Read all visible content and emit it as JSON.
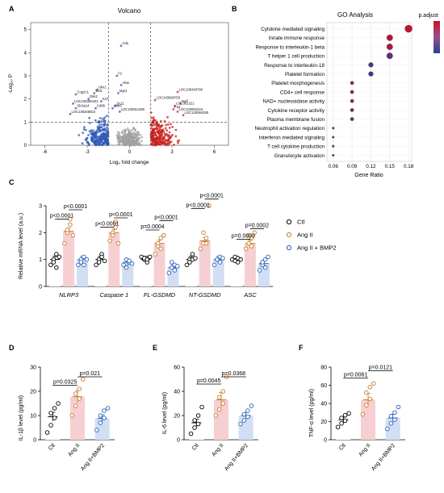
{
  "colors": {
    "ctl": "#000000",
    "angii": "#c87d2c",
    "bmp2": "#2d62b6",
    "ctl_bar": "#ffffff",
    "angii_bar": "#f6cfd2",
    "bmp2_bar": "#d2def4",
    "volcano_up": "#c8201c",
    "volcano_down": "#2f58b8",
    "volcano_ns": "#a0a0a0",
    "go_high": "#c8102e",
    "go_low": "#2b3f8f"
  },
  "panel_labels": {
    "a": "A",
    "b": "B",
    "c": "C",
    "d": "D",
    "e": "E",
    "f": "F"
  },
  "chart_data": [
    {
      "id": "volcano",
      "type": "scatter",
      "title": "Volcano",
      "xlabel": "Log₂ fold change",
      "ylabel": "-Log₁₀ P",
      "xlim": [
        -7,
        7
      ],
      "ylim": [
        0,
        5.3
      ],
      "xticks": [
        "-6",
        "-3",
        "0",
        "3",
        "6"
      ],
      "yticks": [
        "0",
        "1",
        "2",
        "3",
        "4",
        "5"
      ],
      "thresholds": {
        "x": [
          -1.5,
          1.5
        ],
        "y": 1
      },
      "labels_down": [
        {
          "text": "Ctla",
          "x": -0.6,
          "y": 4.3
        },
        {
          "text": "F2",
          "x": -0.9,
          "y": 3.0
        },
        {
          "text": "Atbe",
          "x": -0.6,
          "y": 2.6
        },
        {
          "text": "Ukn1",
          "x": -2.3,
          "y": 2.4
        },
        {
          "text": "Wd1",
          "x": -2.5,
          "y": 2.25
        },
        {
          "text": "Mgr1",
          "x": -0.8,
          "y": 2.25
        },
        {
          "text": "Cog2c1",
          "x": -3.8,
          "y": 2.2
        },
        {
          "text": "Dkk2",
          "x": -2.9,
          "y": 2.0
        },
        {
          "text": "K27",
          "x": -2.0,
          "y": 1.9
        },
        {
          "text": "LOC108350102",
          "x": -4.0,
          "y": 1.8
        },
        {
          "text": "Sc11",
          "x": -1.0,
          "y": 1.7
        },
        {
          "text": "Slc6a14",
          "x": -3.8,
          "y": 1.6
        },
        {
          "text": "Cd86",
          "x": -2.4,
          "y": 1.6
        },
        {
          "text": "Klrk8",
          "x": -1.2,
          "y": 1.6
        },
        {
          "text": "LOC100911366",
          "x": -0.7,
          "y": 1.45
        },
        {
          "text": "LOC108348923",
          "x": -4.2,
          "y": 1.35
        }
      ],
      "labels_up": [
        {
          "text": "LOC108349790",
          "x": 3.4,
          "y": 2.3
        },
        {
          "text": "LOC103690750",
          "x": 1.8,
          "y": 1.95
        },
        {
          "text": "Nuff",
          "x": 3.6,
          "y": 1.8
        },
        {
          "text": "LOC361221",
          "x": 3.2,
          "y": 1.7
        },
        {
          "text": "Fa4",
          "x": 3.1,
          "y": 1.55
        },
        {
          "text": "LOC103694243",
          "x": 3.4,
          "y": 1.45
        },
        {
          "text": "LOC120094285",
          "x": 3.8,
          "y": 1.3
        }
      ]
    },
    {
      "id": "go",
      "type": "scatter",
      "title": "GO Analysis",
      "xlabel": "Gene Ratio",
      "xlim": [
        0.05,
        0.185
      ],
      "xticks": [
        0.06,
        0.09,
        0.12,
        0.15,
        0.18
      ],
      "legend_title": "p.adjust",
      "categories": [
        "Cytokine mediated signaling",
        "Innate immune response",
        "Response to interleukin-1 beta",
        "T helper 1 cell production",
        "Response to interleukin-18",
        "Platelet formation",
        "Platelet morphogenesis",
        "CD4+ cell response",
        "NAD+ nucleosidase activity",
        "Cytokine receptor activity",
        "Plasma membrane fusion",
        "Neutrophil activation regulation",
        "Interferon mediated signaling",
        "T cell cytokine production",
        "Granulocyte activation"
      ],
      "gene_ratio": [
        0.18,
        0.15,
        0.15,
        0.15,
        0.12,
        0.12,
        0.09,
        0.09,
        0.09,
        0.09,
        0.09,
        0.06,
        0.06,
        0.06,
        0.06
      ],
      "padjust_rank": [
        0.9,
        0.85,
        0.82,
        0.25,
        0.2,
        0.2,
        0.6,
        0.55,
        0.5,
        0.35,
        0.25,
        0.4,
        0.35,
        0.3,
        0.3
      ]
    },
    {
      "id": "mrna",
      "type": "bar",
      "ylabel": "Relative mRNA level (a.u.)",
      "ylim": [
        0,
        3
      ],
      "yticks": [
        "0",
        "1",
        "2",
        "3"
      ],
      "categories": [
        "NLRP3",
        "Caspase 1",
        "FL-GSDMD",
        "NT-GSDMD",
        "ASC"
      ],
      "legend_position": "right",
      "series": [
        {
          "name": "Ctl",
          "values": [
            1.0,
            1.0,
            1.0,
            1.0,
            1.0
          ],
          "points": [
            [
              0.8,
              1.0,
              1.2,
              0.9,
              0.7,
              1.1
            ],
            [
              0.8,
              1.0,
              1.2,
              0.9,
              1.1,
              0.95
            ],
            [
              1.1,
              1.0,
              0.9,
              1.05,
              1.0,
              1.1
            ],
            [
              0.8,
              1.0,
              1.2,
              0.9,
              1.0,
              1.05
            ],
            [
              1.0,
              1.1,
              0.9,
              0.95,
              1.05,
              1.0
            ]
          ]
        },
        {
          "name": "Ang II",
          "values": [
            2.05,
            2.0,
            1.6,
            1.7,
            1.6
          ],
          "points": [
            [
              1.6,
              2.0,
              2.3,
              2.1,
              2.5,
              1.9
            ],
            [
              1.7,
              2.0,
              2.2,
              1.9,
              2.4,
              1.6
            ],
            [
              1.2,
              1.5,
              1.8,
              1.6,
              1.4,
              1.9
            ],
            [
              1.4,
              1.6,
              1.8,
              2.0,
              1.6,
              3.0
            ],
            [
              1.4,
              1.6,
              1.8,
              1.9,
              1.5,
              2.0
            ]
          ]
        },
        {
          "name": "Ang II + BMP2",
          "values": [
            1.0,
            0.9,
            0.7,
            1.0,
            0.85
          ],
          "points": [
            [
              0.8,
              1.0,
              1.1,
              0.9,
              0.8,
              1.0
            ],
            [
              0.8,
              1.0,
              0.9,
              0.7,
              0.95,
              0.85
            ],
            [
              0.5,
              0.7,
              0.8,
              0.9,
              0.6,
              0.75
            ],
            [
              0.8,
              1.0,
              1.1,
              1.0,
              0.9,
              1.05
            ],
            [
              0.6,
              0.8,
              1.0,
              0.9,
              0.7,
              1.1
            ]
          ]
        }
      ],
      "annotations": [
        {
          "text": "p<0.0001",
          "group": 0,
          "from": 0,
          "to": 1,
          "y": 2.5
        },
        {
          "text": "p<0.0001",
          "group": 0,
          "from": 1,
          "to": 2,
          "y": 2.85
        },
        {
          "text": "p<0.0001",
          "group": 1,
          "from": 0,
          "to": 1,
          "y": 2.2
        },
        {
          "text": "p<0.0001",
          "group": 1,
          "from": 1,
          "to": 2,
          "y": 2.55
        },
        {
          "text": "p=0.0004",
          "group": 2,
          "from": 0,
          "to": 1,
          "y": 2.1
        },
        {
          "text": "p<0.0001",
          "group": 2,
          "from": 1,
          "to": 2,
          "y": 2.45
        },
        {
          "text": "p<0.0001",
          "group": 3,
          "from": 0,
          "to": 1,
          "y": 2.9
        },
        {
          "text": "p<0.0001",
          "group": 3,
          "from": 1,
          "to": 2,
          "y": 3.25
        },
        {
          "text": "p=0.0009",
          "group": 4,
          "from": 0,
          "to": 1,
          "y": 1.75
        },
        {
          "text": "p=0.0002",
          "group": 4,
          "from": 1,
          "to": 2,
          "y": 2.15
        }
      ]
    },
    {
      "id": "il1b",
      "type": "bar",
      "ylabel": "IL-1β level (pg/ml)",
      "ylim": [
        0,
        30
      ],
      "yticks": [
        "0",
        "10",
        "20",
        "30"
      ],
      "categories": [
        "Ctl",
        "Ang II",
        "Ang II+BMP2"
      ],
      "values": [
        9.5,
        17.8,
        8.8
      ],
      "errors": [
        1.8,
        2.5,
        1.5
      ],
      "points": [
        [
          3,
          6,
          9,
          11,
          13,
          15
        ],
        [
          10,
          14,
          17,
          19,
          21,
          25
        ],
        [
          4,
          7,
          9,
          10,
          12,
          13
        ]
      ],
      "annotations": [
        {
          "text": "p=0.0325",
          "from": 0,
          "to": 1,
          "y": 22.5
        },
        {
          "text": "p=0.021",
          "from": 1,
          "to": 2,
          "y": 26
        }
      ]
    },
    {
      "id": "il6",
      "type": "bar",
      "ylabel": "IL-6 level (pg/ml)",
      "ylim": [
        0,
        60
      ],
      "yticks": [
        "0",
        "20",
        "40",
        "60"
      ],
      "categories": [
        "Ctl",
        "Ang II",
        "Ang II+BMP2"
      ],
      "values": [
        14,
        33,
        20
      ],
      "errors": [
        3,
        6,
        2.5
      ],
      "points": [
        [
          5,
          10,
          13,
          16,
          20,
          27
        ],
        [
          20,
          25,
          30,
          35,
          40,
          52
        ],
        [
          13,
          16,
          19,
          21,
          24,
          28
        ]
      ],
      "annotations": [
        {
          "text": "p=0.0045",
          "from": 0,
          "to": 1,
          "y": 46
        },
        {
          "text": "p=0.0368",
          "from": 1,
          "to": 2,
          "y": 52
        }
      ]
    },
    {
      "id": "tnfa",
      "type": "bar",
      "ylabel": "TNF-α level (pg/ml)",
      "ylim": [
        0,
        80
      ],
      "yticks": [
        "0",
        "20",
        "40",
        "60",
        "80"
      ],
      "categories": [
        "Ctl",
        "Ang II",
        "Ang II+BMP2"
      ],
      "values": [
        22,
        44,
        24
      ],
      "errors": [
        3,
        7,
        4
      ],
      "points": [
        [
          14,
          18,
          21,
          24,
          27,
          29
        ],
        [
          28,
          38,
          45,
          52,
          58,
          62
        ],
        [
          12,
          18,
          22,
          26,
          30,
          36
        ]
      ],
      "annotations": [
        {
          "text": "p=0.0061",
          "from": 0,
          "to": 1,
          "y": 68
        },
        {
          "text": "p=0.0121",
          "from": 1,
          "to": 2,
          "y": 76
        }
      ]
    }
  ]
}
